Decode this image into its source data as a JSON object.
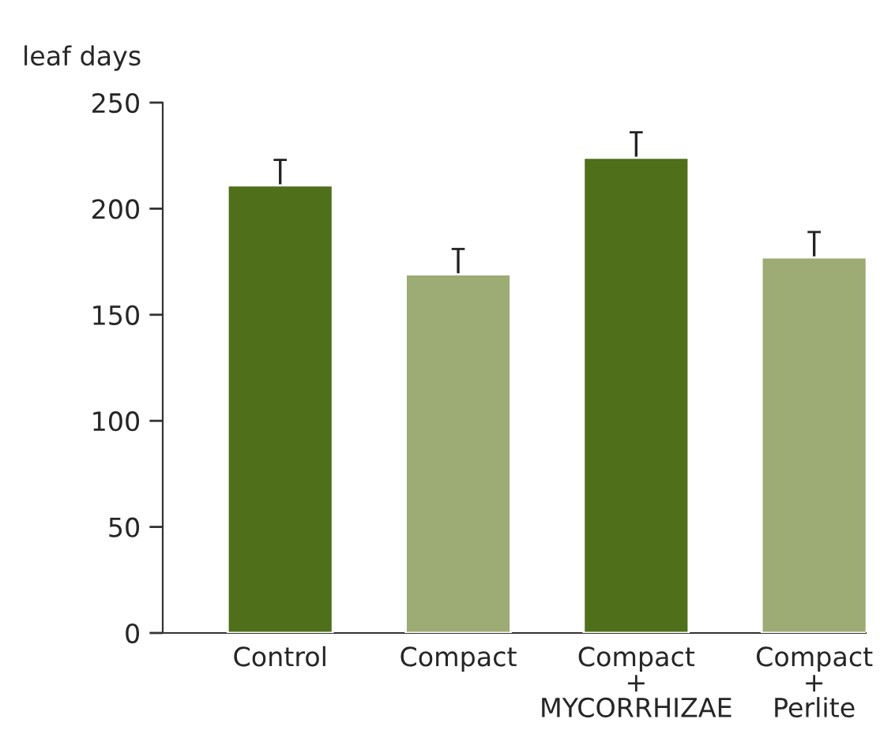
{
  "chart_data": {
    "type": "bar",
    "ylabel": "leaf days",
    "categories": [
      "Control",
      "Compact",
      "Compact\n+\nMYCORRHIZAE",
      "Compact\n+\nPerlite"
    ],
    "values": [
      211,
      169,
      224,
      177
    ],
    "errors": [
      12,
      12,
      12,
      12
    ],
    "colors": [
      "#4f6f1a",
      "#9dab74",
      "#4f6f1a",
      "#9dab74"
    ],
    "ylim": [
      0,
      250
    ],
    "yticks": [
      0,
      50,
      100,
      150,
      200,
      250
    ],
    "grid": false,
    "legend": false
  }
}
